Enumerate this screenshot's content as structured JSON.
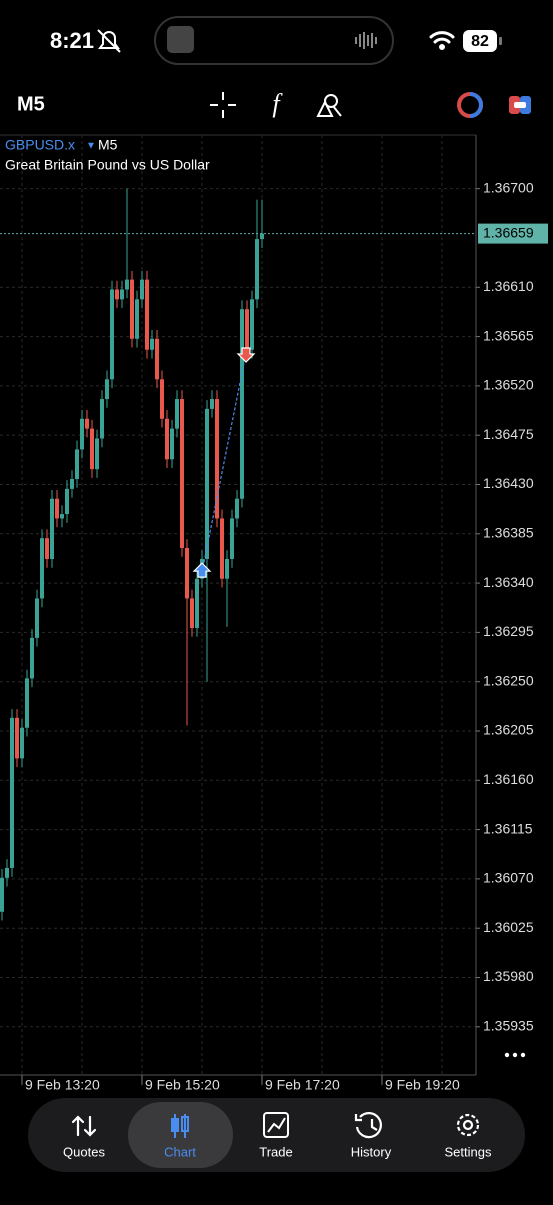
{
  "status_bar": {
    "time": "8:21",
    "battery": "82"
  },
  "toolbar": {
    "timeframe": "M5"
  },
  "chart_data": {
    "type": "candlestick",
    "symbol": "GBPUSD.x",
    "timeframe": "M5",
    "subtitle": "Great Britain Pound vs US Dollar",
    "bull_color": "#3aa396",
    "bear_color": "#e8584d",
    "grid": true,
    "ylim": [
      1.35891,
      1.36749
    ],
    "yticks": [
      {
        "value": 1.367,
        "label": "1.36700"
      },
      {
        "value": 1.3661,
        "label": "1.36610"
      },
      {
        "value": 1.36565,
        "label": "1.36565"
      },
      {
        "value": 1.3652,
        "label": "1.36520"
      },
      {
        "value": 1.36475,
        "label": "1.36475"
      },
      {
        "value": 1.3643,
        "label": "1.36430"
      },
      {
        "value": 1.36385,
        "label": "1.36385"
      },
      {
        "value": 1.3634,
        "label": "1.36340"
      },
      {
        "value": 1.36295,
        "label": "1.36295"
      },
      {
        "value": 1.3625,
        "label": "1.36250"
      },
      {
        "value": 1.36205,
        "label": "1.36205"
      },
      {
        "value": 1.3616,
        "label": "1.36160"
      },
      {
        "value": 1.36115,
        "label": "1.36115"
      },
      {
        "value": 1.3607,
        "label": "1.36070"
      },
      {
        "value": 1.36025,
        "label": "1.36025"
      },
      {
        "value": 1.3598,
        "label": "1.35980"
      },
      {
        "value": 1.35935,
        "label": "1.35935"
      }
    ],
    "xticks": [
      "9 Feb 13:20",
      "9 Feb 15:20",
      "9 Feb 17:20",
      "9 Feb 19:20"
    ],
    "last_price": 1.36659,
    "trade": {
      "open_price": 1.3635,
      "close_price": 1.3655
    },
    "open": [
      1.3604,
      1.36071,
      1.3608,
      1.36217,
      1.3618,
      1.36208,
      1.36253,
      1.3629,
      1.36326,
      1.36381,
      1.36362,
      1.36417,
      1.36399,
      1.36403,
      1.36426,
      1.36435,
      1.36462,
      1.3649,
      1.36481,
      1.36444,
      1.36472,
      1.36508,
      1.36526,
      1.36608,
      1.36599,
      1.36608,
      1.36617,
      1.36563,
      1.36599,
      1.36617,
      1.36553,
      1.36563,
      1.36526,
      1.3649,
      1.36453,
      1.36481,
      1.36508,
      1.36372,
      1.36326,
      1.36299,
      1.36344,
      1.36362,
      1.36499,
      1.36508,
      1.36399,
      1.36344,
      1.36362,
      1.36399,
      1.36417,
      1.3659,
      1.36553,
      1.36599,
      1.36654
    ],
    "high": [
      1.36079,
      1.36088,
      1.36225,
      1.36225,
      1.36216,
      1.36261,
      1.36298,
      1.36334,
      1.36389,
      1.36389,
      1.36425,
      1.36425,
      1.36411,
      1.36434,
      1.36443,
      1.3647,
      1.36498,
      1.36498,
      1.36489,
      1.3648,
      1.36516,
      1.36534,
      1.36616,
      1.36616,
      1.36616,
      1.367,
      1.36625,
      1.36607,
      1.36625,
      1.36625,
      1.36571,
      1.36571,
      1.36534,
      1.36498,
      1.36489,
      1.36516,
      1.36516,
      1.3638,
      1.36334,
      1.36352,
      1.3637,
      1.36507,
      1.36516,
      1.36516,
      1.36407,
      1.3637,
      1.36407,
      1.36425,
      1.36598,
      1.36598,
      1.36607,
      1.3669,
      1.3669
    ],
    "low": [
      1.36032,
      1.36063,
      1.36072,
      1.36172,
      1.36172,
      1.362,
      1.36245,
      1.36282,
      1.36318,
      1.36354,
      1.36354,
      1.36391,
      1.36391,
      1.36395,
      1.36418,
      1.36427,
      1.36454,
      1.36473,
      1.36436,
      1.36436,
      1.36464,
      1.365,
      1.36518,
      1.36591,
      1.36591,
      1.366,
      1.36555,
      1.36555,
      1.36591,
      1.36545,
      1.36545,
      1.36518,
      1.36482,
      1.36445,
      1.36445,
      1.36473,
      1.36364,
      1.3621,
      1.36291,
      1.36291,
      1.36336,
      1.3625,
      1.36491,
      1.36391,
      1.36336,
      1.363,
      1.36354,
      1.36391,
      1.36409,
      1.36545,
      1.36545,
      1.36591,
      1.36646
    ],
    "close": [
      1.36071,
      1.3608,
      1.36217,
      1.3618,
      1.36208,
      1.36253,
      1.3629,
      1.36326,
      1.36381,
      1.36362,
      1.36417,
      1.36399,
      1.36403,
      1.36426,
      1.36435,
      1.36462,
      1.3649,
      1.36481,
      1.36444,
      1.36472,
      1.36508,
      1.36526,
      1.36608,
      1.36599,
      1.36608,
      1.36617,
      1.36563,
      1.36599,
      1.36617,
      1.36553,
      1.36563,
      1.36526,
      1.3649,
      1.36453,
      1.36481,
      1.36508,
      1.36372,
      1.36326,
      1.36299,
      1.36344,
      1.36362,
      1.36499,
      1.36508,
      1.36399,
      1.36344,
      1.36362,
      1.36399,
      1.36417,
      1.3659,
      1.36553,
      1.36599,
      1.36654,
      1.36659
    ]
  },
  "tab_bar": {
    "tabs": [
      "Quotes",
      "Chart",
      "Trade",
      "History",
      "Settings"
    ]
  }
}
